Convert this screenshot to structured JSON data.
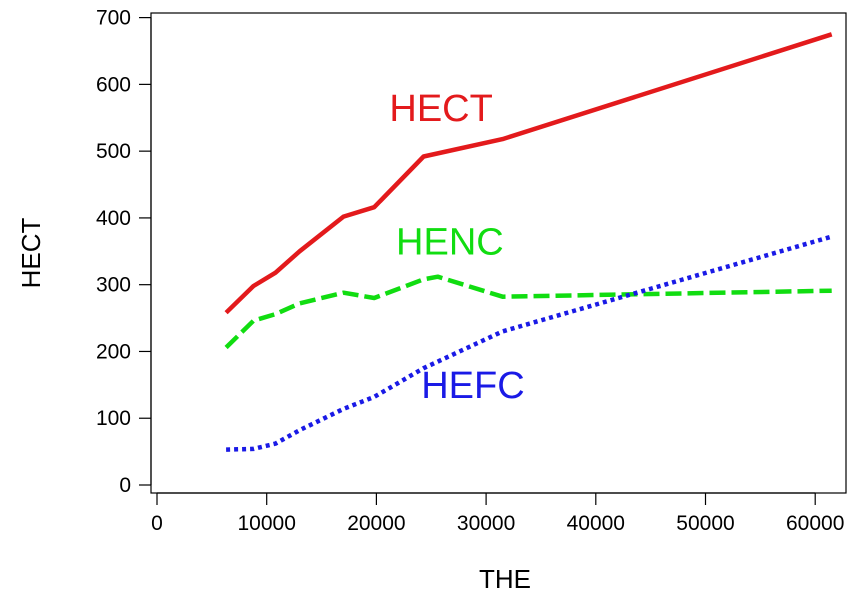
{
  "chart_data": {
    "type": "line",
    "title": "",
    "xlabel": "THE",
    "ylabel": "HECT",
    "xlim": [
      0,
      63000
    ],
    "ylim": [
      0,
      700
    ],
    "grid": false,
    "x_ticks": [
      0,
      10000,
      20000,
      30000,
      40000,
      50000,
      60000
    ],
    "x_tick_labels": [
      "0",
      "10000",
      "20000",
      "30000",
      "40000",
      "50000",
      "60000"
    ],
    "y_ticks": [
      0,
      100,
      200,
      300,
      400,
      500,
      600,
      700
    ],
    "y_tick_labels": [
      "0",
      "100",
      "200",
      "300",
      "400",
      "500",
      "600",
      "700"
    ],
    "series": [
      {
        "name": "HECT",
        "color": "#e31a1c",
        "style": "solid",
        "x": [
          6300,
          8800,
          10800,
          13000,
          17000,
          19800,
          24300,
          31500,
          61500
        ],
        "values": [
          258,
          298,
          318,
          350,
          402,
          416,
          492,
          518,
          675
        ]
      },
      {
        "name": "HENC",
        "color": "#11dd11",
        "style": "dashed",
        "x": [
          6300,
          8800,
          10800,
          13000,
          17000,
          19800,
          24300,
          25600,
          31500,
          61500
        ],
        "values": [
          206,
          246,
          256,
          272,
          288,
          280,
          308,
          312,
          282,
          291
        ]
      },
      {
        "name": "HEFC",
        "color": "#1a1ae6",
        "style": "dotted",
        "x": [
          6300,
          8800,
          10800,
          13000,
          17000,
          19800,
          24300,
          31500,
          61500
        ],
        "values": [
          53,
          54,
          62,
          82,
          114,
          132,
          175,
          230,
          372
        ]
      }
    ],
    "annotations": [
      {
        "text": "HECT",
        "color": "#e31a1c",
        "x": 25900,
        "y": 545
      },
      {
        "text": "HENC",
        "color": "#11dd11",
        "x": 26700,
        "y": 345
      },
      {
        "text": "HEFC",
        "color": "#1a1ae6",
        "x": 28800,
        "y": 130
      }
    ]
  }
}
